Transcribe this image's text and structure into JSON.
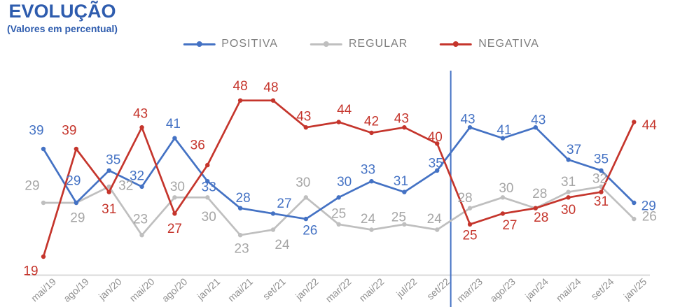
{
  "header": {
    "title": "EVOLUÇÃO",
    "subtitle": "(Valores em percentual)"
  },
  "legend": [
    {
      "label": "POSITIVA",
      "color": "#4472c4"
    },
    {
      "label": "REGULAR",
      "color": "#bfbfbf"
    },
    {
      "label": "NEGATIVA",
      "color": "#c5352c"
    }
  ],
  "colors": {
    "title_blue": "#2e5cae",
    "positiva_blue": "#4472c4",
    "regular_gray_line": "#bfbfbf",
    "regular_gray_label": "#a6a6a6",
    "negativa_red": "#c5352c",
    "axis_line": "#d9d9d9",
    "divider_blue": "#4472c4",
    "x_label_gray": "#8f8f8f",
    "legend_text_gray": "#7f7f7f"
  },
  "chart_data": {
    "type": "line",
    "title": "EVOLUÇÃO",
    "subtitle": "(Valores em percentual)",
    "unit": "percent",
    "legend_position": "top-center",
    "grid": false,
    "y_axis_visible": false,
    "x_labels": [
      "mai/19",
      "ago/19",
      "jan/20",
      "mai/20",
      "ago/20",
      "jan/21",
      "mai/21",
      "set/21",
      "jan/22",
      "mar/22",
      "mai/22",
      "jul/22",
      "set/22",
      "mar/23",
      "ago/23",
      "jan/24",
      "mai/24",
      "set/24",
      "jan/25"
    ],
    "divider_after_index": 12,
    "series": [
      {
        "name": "POSITIVA",
        "color": "#4472c4",
        "label_color": "#4472c4",
        "values": [
          39,
          29,
          35,
          32,
          41,
          33,
          28,
          27,
          26,
          30,
          33,
          31,
          35,
          43,
          41,
          43,
          37,
          35,
          29
        ],
        "label_offsets": [
          [
            -10,
            -26
          ],
          [
            -4,
            -31
          ],
          [
            6,
            -15
          ],
          [
            -7,
            -15
          ],
          [
            -2,
            -20
          ],
          [
            2,
            9
          ],
          [
            4,
            -14
          ],
          [
            16,
            -14
          ],
          [
            6,
            17
          ],
          [
            8,
            -22
          ],
          [
            -5,
            -16
          ],
          [
            -5,
            -15
          ],
          [
            -2,
            -10
          ],
          [
            -3,
            -11
          ],
          [
            2,
            -11
          ],
          [
            4,
            -10
          ],
          [
            8,
            -14
          ],
          [
            0,
            -16
          ],
          [
            21,
            5
          ]
        ]
      },
      {
        "name": "REGULAR",
        "color": "#bfbfbf",
        "label_color": "#a6a6a6",
        "values": [
          29,
          29,
          32,
          23,
          30,
          30,
          23,
          24,
          30,
          25,
          24,
          25,
          24,
          28,
          30,
          28,
          31,
          32,
          26
        ],
        "label_offsets": [
          [
            -16,
            -24
          ],
          [
            2,
            22
          ],
          [
            24,
            -1
          ],
          [
            -2,
            -22
          ],
          [
            4,
            -15
          ],
          [
            2,
            28
          ],
          [
            2,
            20
          ],
          [
            13,
            22
          ],
          [
            -4,
            -21
          ],
          [
            0,
            -15
          ],
          [
            -5,
            -15
          ],
          [
            -8,
            -10
          ],
          [
            -4,
            -15
          ],
          [
            -7,
            -14
          ],
          [
            5,
            -13
          ],
          [
            6,
            -20
          ],
          [
            0,
            -14
          ],
          [
            -2,
            -11
          ],
          [
            22,
            -3
          ]
        ]
      },
      {
        "name": "NEGATIVA",
        "color": "#c5352c",
        "label_color": "#c5352c",
        "values": [
          19,
          39,
          31,
          43,
          27,
          36,
          48,
          48,
          43,
          44,
          42,
          43,
          40,
          25,
          27,
          28,
          30,
          31,
          44
        ],
        "label_offsets": [
          [
            -18,
            21
          ],
          [
            -10,
            -26
          ],
          [
            0,
            25
          ],
          [
            -2,
            -19
          ],
          [
            0,
            22
          ],
          [
            -14,
            -28
          ],
          [
            0,
            -20
          ],
          [
            -3,
            -18
          ],
          [
            -3,
            -15
          ],
          [
            8,
            -17
          ],
          [
            0,
            -16
          ],
          [
            -4,
            -12
          ],
          [
            -3,
            -9
          ],
          [
            0,
            16
          ],
          [
            10,
            17
          ],
          [
            8,
            14
          ],
          [
            0,
            18
          ],
          [
            0,
            14
          ],
          [
            22,
            5
          ]
        ]
      }
    ]
  }
}
